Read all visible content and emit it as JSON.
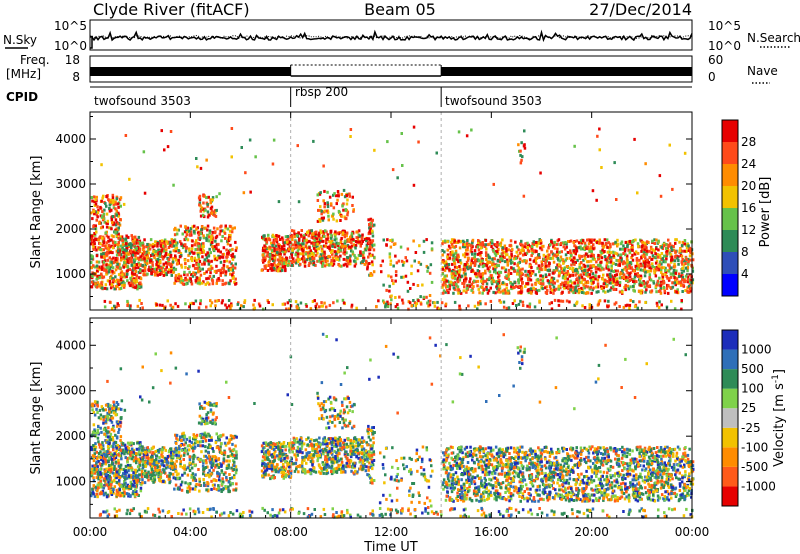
{
  "header": {
    "station": "Clyde River (fitACF)",
    "beam": "Beam 05",
    "date": "27/Dec/2014"
  },
  "noise_panel": {
    "left_label": "N.Sky",
    "right_label": "N.Search",
    "left_ticks": [
      "10^5",
      "10^0"
    ],
    "right_ticks": [
      "10^5",
      "10^0"
    ]
  },
  "freq_panel": {
    "left_label_1": "Freq.",
    "left_label_2": "[MHz]",
    "left_ticks": [
      "18",
      "8"
    ],
    "right_label": "Nave",
    "right_ticks": [
      "60",
      "0"
    ]
  },
  "cpid": {
    "label": "CPID",
    "segments": [
      {
        "name": "twofsound 3503",
        "start_hour": 0,
        "end_hour": 8
      },
      {
        "name": "rbsp 200",
        "start_hour": 8,
        "end_hour": 14
      },
      {
        "name": "twofsound 3503",
        "start_hour": 14,
        "end_hour": 24
      }
    ]
  },
  "colors": {
    "power": [
      "#0000ff",
      "#2f4fb8",
      "#2e8b57",
      "#66c24a",
      "#f2c200",
      "#ff8c00",
      "#ff4a1a",
      "#e60000"
    ],
    "velocity": [
      "#1c2dba",
      "#2f6fb8",
      "#2e8b57",
      "#7fd24a",
      "#bfbfbf",
      "#f2c200",
      "#ff8c00",
      "#ff5a1a",
      "#e60000"
    ]
  },
  "chart_data": [
    {
      "type": "heatmap",
      "quantity": "power",
      "ylabel": "Slant Range [km]",
      "ylim": [
        200,
        4600
      ],
      "y_ticks": [
        "1000",
        "2000",
        "3000",
        "4000"
      ],
      "xlim": [
        0,
        24
      ],
      "x_ticks": [
        "00:00",
        "04:00",
        "08:00",
        "12:00",
        "16:00",
        "20:00",
        "00:00"
      ],
      "colorbar_label": "Power [dB]",
      "colorbar_ticks": [
        "4",
        "8",
        "12",
        "16",
        "20",
        "24",
        "28"
      ]
    },
    {
      "type": "heatmap",
      "quantity": "velocity",
      "ylabel": "Slant Range [km]",
      "ylim": [
        200,
        4600
      ],
      "y_ticks": [
        "1000",
        "2000",
        "3000",
        "4000"
      ],
      "xlim": [
        0,
        24
      ],
      "x_ticks": [
        "00:00",
        "04:00",
        "08:00",
        "12:00",
        "16:00",
        "20:00",
        "00:00"
      ],
      "xlabel": "Time UT",
      "colorbar_label": "Velocity [m s^-1]",
      "colorbar_ticks": [
        "1000",
        "500",
        "100",
        "25",
        "-25",
        "-100",
        "-500",
        "-1000"
      ]
    }
  ]
}
